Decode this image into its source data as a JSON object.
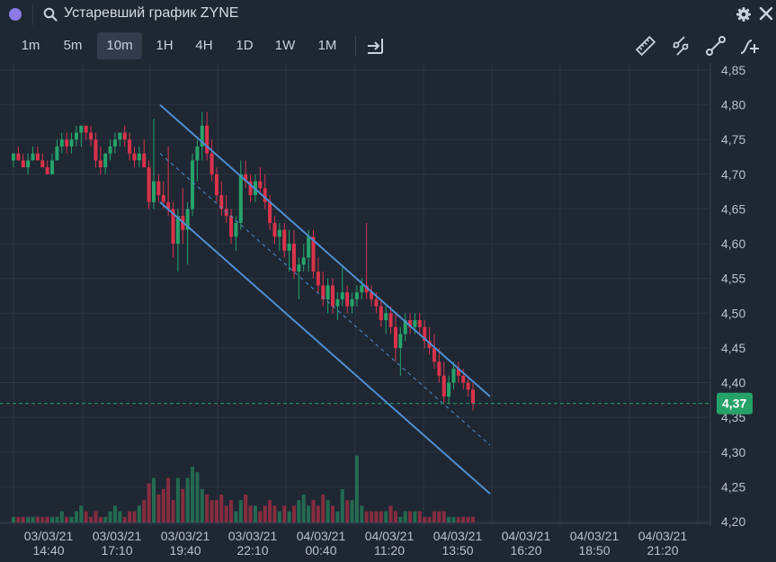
{
  "window": {
    "title": "Устаревший график ZYNE"
  },
  "toolbar": {
    "timeframes": [
      "1m",
      "5m",
      "10m",
      "1H",
      "4H",
      "1D",
      "1W",
      "1M"
    ],
    "active_timeframe": "10m"
  },
  "colors": {
    "background": "#1f2733",
    "up": "#27a36a",
    "down": "#d9334b",
    "channel": "#4e8ed1",
    "price_tag": "#26a269",
    "accent": "#8b7ae6"
  },
  "chart_data": {
    "type": "candlestick",
    "symbol": "ZYNE",
    "ylim": [
      4.2,
      4.85
    ],
    "y_ticks": [
      "4,85",
      "4,80",
      "4,75",
      "4,70",
      "4,65",
      "4,60",
      "4,55",
      "4,50",
      "4,45",
      "4,40",
      "4,35",
      "4,30",
      "4,25",
      "4,20"
    ],
    "x_labels": [
      {
        "date": "03/03/21",
        "time": "14:40"
      },
      {
        "date": "03/03/21",
        "time": "17:10"
      },
      {
        "date": "03/03/21",
        "time": "19:40"
      },
      {
        "date": "03/03/21",
        "time": "22:10"
      },
      {
        "date": "04/03/21",
        "time": "00:40"
      },
      {
        "date": "04/03/21",
        "time": "11:20"
      },
      {
        "date": "04/03/21",
        "time": "13:50"
      },
      {
        "date": "04/03/21",
        "time": "16:20"
      },
      {
        "date": "04/03/21",
        "time": "18:50"
      },
      {
        "date": "04/03/21",
        "time": "21:20"
      }
    ],
    "last_price": 4.37,
    "last_price_label": "4,37",
    "channel": {
      "upper": [
        [
          4.8,
          "03/03/21 19:10"
        ],
        [
          4.38,
          "04/03/21 14:20"
        ]
      ],
      "lower": [
        [
          4.66,
          "03/03/21 19:10"
        ],
        [
          4.24,
          "04/03/21 14:20"
        ]
      ]
    },
    "candles": [
      [
        4.72,
        4.73,
        4.71,
        4.73
      ],
      [
        4.73,
        4.74,
        4.72,
        4.72
      ],
      [
        4.72,
        4.73,
        4.71,
        4.71
      ],
      [
        4.71,
        4.73,
        4.7,
        4.72
      ],
      [
        4.72,
        4.74,
        4.72,
        4.73
      ],
      [
        4.73,
        4.74,
        4.72,
        4.72
      ],
      [
        4.72,
        4.73,
        4.71,
        4.71
      ],
      [
        4.71,
        4.72,
        4.7,
        4.7
      ],
      [
        4.7,
        4.73,
        4.7,
        4.72
      ],
      [
        4.72,
        4.75,
        4.72,
        4.74
      ],
      [
        4.74,
        4.76,
        4.73,
        4.75
      ],
      [
        4.75,
        4.76,
        4.73,
        4.74
      ],
      [
        4.74,
        4.76,
        4.73,
        4.75
      ],
      [
        4.75,
        4.77,
        4.74,
        4.76
      ],
      [
        4.76,
        4.77,
        4.74,
        4.77
      ],
      [
        4.77,
        4.77,
        4.75,
        4.76
      ],
      [
        4.76,
        4.77,
        4.74,
        4.75
      ],
      [
        4.75,
        4.76,
        4.71,
        4.72
      ],
      [
        4.72,
        4.74,
        4.7,
        4.71
      ],
      [
        4.71,
        4.73,
        4.7,
        4.73
      ],
      [
        4.73,
        4.75,
        4.72,
        4.74
      ],
      [
        4.74,
        4.76,
        4.73,
        4.75
      ],
      [
        4.75,
        4.76,
        4.74,
        4.76
      ],
      [
        4.76,
        4.77,
        4.74,
        4.75
      ],
      [
        4.75,
        4.76,
        4.72,
        4.73
      ],
      [
        4.73,
        4.74,
        4.71,
        4.72
      ],
      [
        4.72,
        4.74,
        4.71,
        4.73
      ],
      [
        4.73,
        4.75,
        4.71,
        4.71
      ],
      [
        4.71,
        4.72,
        4.65,
        4.66
      ],
      [
        4.66,
        4.78,
        4.65,
        4.69
      ],
      [
        4.69,
        4.7,
        4.66,
        4.67
      ],
      [
        4.67,
        4.69,
        4.65,
        4.66
      ],
      [
        4.66,
        4.74,
        4.64,
        4.65
      ],
      [
        4.65,
        4.66,
        4.58,
        4.6
      ],
      [
        4.6,
        4.65,
        4.56,
        4.64
      ],
      [
        4.64,
        4.68,
        4.6,
        4.62
      ],
      [
        4.62,
        4.66,
        4.57,
        4.65
      ],
      [
        4.65,
        4.73,
        4.64,
        4.72
      ],
      [
        4.72,
        4.75,
        4.69,
        4.74
      ],
      [
        4.74,
        4.79,
        4.72,
        4.77
      ],
      [
        4.77,
        4.79,
        4.72,
        4.73
      ],
      [
        4.73,
        4.75,
        4.69,
        4.7
      ],
      [
        4.7,
        4.71,
        4.66,
        4.67
      ],
      [
        4.67,
        4.69,
        4.64,
        4.65
      ],
      [
        4.65,
        4.67,
        4.63,
        4.64
      ],
      [
        4.64,
        4.65,
        4.6,
        4.61
      ],
      [
        4.61,
        4.64,
        4.59,
        4.63
      ],
      [
        4.63,
        4.72,
        4.62,
        4.7
      ],
      [
        4.7,
        4.72,
        4.68,
        4.69
      ],
      [
        4.69,
        4.7,
        4.66,
        4.67
      ],
      [
        4.67,
        4.7,
        4.66,
        4.69
      ],
      [
        4.69,
        4.71,
        4.67,
        4.68
      ],
      [
        4.68,
        4.7,
        4.65,
        4.66
      ],
      [
        4.66,
        4.67,
        4.62,
        4.63
      ],
      [
        4.63,
        4.64,
        4.6,
        4.61
      ],
      [
        4.61,
        4.63,
        4.59,
        4.62
      ],
      [
        4.62,
        4.63,
        4.58,
        4.59
      ],
      [
        4.59,
        4.62,
        4.56,
        4.6
      ],
      [
        4.6,
        4.62,
        4.55,
        4.56
      ],
      [
        4.56,
        4.58,
        4.52,
        4.57
      ],
      [
        4.57,
        4.6,
        4.56,
        4.58
      ],
      [
        4.58,
        4.62,
        4.56,
        4.61
      ],
      [
        4.61,
        4.62,
        4.55,
        4.56
      ],
      [
        4.56,
        4.58,
        4.53,
        4.54
      ],
      [
        4.54,
        4.56,
        4.51,
        4.52
      ],
      [
        4.52,
        4.55,
        4.5,
        4.54
      ],
      [
        4.54,
        4.55,
        4.5,
        4.51
      ],
      [
        4.51,
        4.53,
        4.49,
        4.52
      ],
      [
        4.52,
        4.57,
        4.51,
        4.53
      ],
      [
        4.53,
        4.54,
        4.5,
        4.51
      ],
      [
        4.51,
        4.53,
        4.5,
        4.52
      ],
      [
        4.52,
        4.54,
        4.51,
        4.53
      ],
      [
        4.53,
        4.55,
        4.52,
        4.54
      ],
      [
        4.54,
        4.63,
        4.52,
        4.53
      ],
      [
        4.53,
        4.54,
        4.51,
        4.52
      ],
      [
        4.52,
        4.53,
        4.5,
        4.51
      ],
      [
        4.51,
        4.52,
        4.48,
        4.49
      ],
      [
        4.49,
        4.51,
        4.47,
        4.5
      ],
      [
        4.5,
        4.51,
        4.47,
        4.48
      ],
      [
        4.48,
        4.5,
        4.43,
        4.45
      ],
      [
        4.45,
        4.48,
        4.41,
        4.47
      ],
      [
        4.47,
        4.5,
        4.46,
        4.49
      ],
      [
        4.49,
        4.5,
        4.47,
        4.48
      ],
      [
        4.48,
        4.5,
        4.47,
        4.49
      ],
      [
        4.49,
        4.5,
        4.47,
        4.48
      ],
      [
        4.48,
        4.49,
        4.45,
        4.46
      ],
      [
        4.46,
        4.48,
        4.44,
        4.45
      ],
      [
        4.45,
        4.47,
        4.42,
        4.43
      ],
      [
        4.43,
        4.45,
        4.4,
        4.41
      ],
      [
        4.41,
        4.43,
        4.37,
        4.38
      ],
      [
        4.38,
        4.41,
        4.37,
        4.4
      ],
      [
        4.4,
        4.43,
        4.39,
        4.42
      ],
      [
        4.42,
        4.43,
        4.4,
        4.41
      ],
      [
        4.41,
        4.42,
        4.39,
        4.4
      ],
      [
        4.4,
        4.41,
        4.38,
        4.39
      ],
      [
        4.39,
        4.4,
        4.36,
        4.37
      ]
    ],
    "volumes": [
      1,
      1,
      1,
      1,
      1,
      1,
      1,
      1,
      1,
      1,
      2,
      1,
      1,
      2,
      3,
      2,
      1,
      2,
      1,
      1,
      2,
      3,
      2,
      1,
      2,
      2,
      3,
      4,
      7,
      8,
      5,
      6,
      8,
      4,
      8,
      6,
      8,
      10,
      9,
      6,
      5,
      4,
      4,
      5,
      3,
      4,
      2,
      4,
      5,
      3,
      3,
      2,
      3,
      4,
      3,
      2,
      3,
      2,
      3,
      4,
      5,
      3,
      4,
      3,
      5,
      4,
      3,
      2,
      6,
      4,
      4,
      12,
      3,
      2,
      2,
      2,
      2,
      2,
      3,
      2,
      1,
      2,
      2,
      2,
      2,
      1,
      1,
      2,
      2,
      2,
      1,
      1,
      1,
      1,
      1,
      1
    ]
  }
}
